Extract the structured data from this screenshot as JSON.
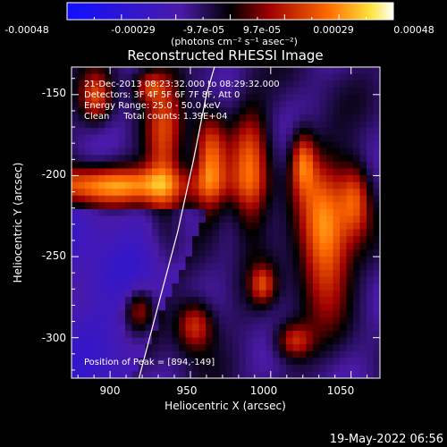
{
  "colorbar": {
    "ticks": [
      "-0.00048",
      "-0.00029",
      "-9.7e-05",
      "9.7e-05",
      "0.00029",
      "0.00048"
    ],
    "unit_line": "(photons cm⁻² s⁻¹ asec⁻²)",
    "colors": [
      "#1010ff",
      "#4a1aa8",
      "#000000",
      "#a00000",
      "#ff6a00",
      "#ffe23a",
      "#ffffff"
    ]
  },
  "chart_data": {
    "type": "heatmap",
    "title": "Reconstructed RHESSI Image",
    "xlabel": "Heliocentric X (arcsec)",
    "ylabel": "Heliocentric Y (arcsec)",
    "xlim": [
      876,
      1068
    ],
    "ylim": [
      -325,
      -133
    ],
    "xticks": [
      "900",
      "950",
      "1000",
      "1050"
    ],
    "yticks": [
      "-150",
      "-200",
      "-250",
      "-300"
    ],
    "xtick_values": [
      900,
      950,
      1000,
      1050
    ],
    "ytick_values": [
      -150,
      -200,
      -250,
      -300
    ],
    "limb_curve": [
      [
        918,
        -325
      ],
      [
        930,
        -280
      ],
      [
        942,
        -235
      ],
      [
        952,
        -190
      ],
      [
        960,
        -150
      ],
      [
        965,
        -133
      ]
    ],
    "annotations": [
      "21-Dec-2013 08:23:32.000 to 08:29:32.000",
      "Detectors: 3F 4F 5F 6F 7F 8F, Att 0",
      "Energy Range: 25.0 - 50.0 keV",
      "Clean     Total counts: 1.39E+04"
    ],
    "peak_label": "Position of Peak = [894,-149]"
  },
  "footer": {
    "timestamp": "19-May-2022 06:56"
  }
}
